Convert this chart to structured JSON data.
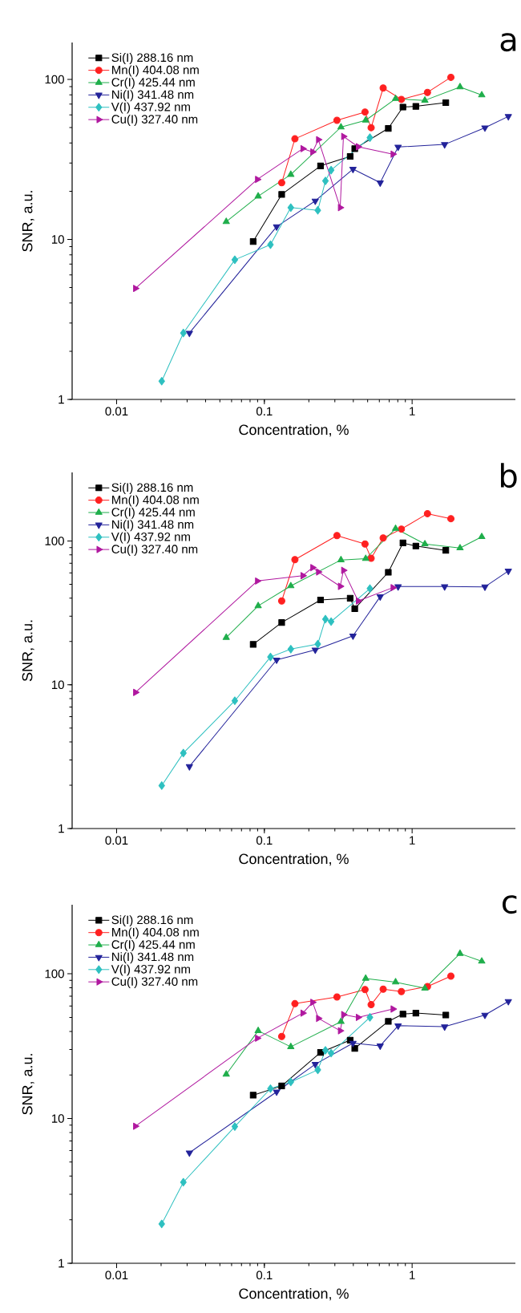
{
  "chart_data": [
    {
      "type": "line",
      "title": "a",
      "xlabel": "Concentration, %",
      "ylabel": "SNR, a.u.",
      "log": "xy",
      "legend": "top left",
      "xlim": [
        0.005,
        5
      ],
      "ylim": [
        1,
        170
      ],
      "xticks": [
        0.01,
        0.1,
        1
      ],
      "yticks": [
        1,
        10,
        100
      ],
      "series": [
        {
          "name": "Si(I) 288.16 nm",
          "color": "#000000",
          "marker": "square",
          "x": [
            0.084,
            0.131,
            0.24,
            0.381,
            0.409,
            0.69,
            0.867,
            1.06,
            1.69
          ],
          "values": [
            9.7,
            19.1,
            28.8,
            33,
            36.9,
            49.4,
            67.1,
            67.8,
            71.5
          ]
        },
        {
          "name": "Mn(I) 404.08 nm",
          "color": "#ff2020",
          "marker": "circle",
          "x": [
            0.131,
            0.161,
            0.31,
            0.48,
            0.528,
            0.637,
            0.846,
            1.27,
            1.83
          ],
          "values": [
            22.6,
            42.5,
            55.5,
            62.5,
            49.9,
            88.3,
            75,
            82.9,
            103
          ]
        },
        {
          "name": "Cr(I) 425.44 nm",
          "color": "#1fae4b",
          "marker": "triangle",
          "x": [
            0.0552,
            0.0908,
            0.151,
            0.33,
            0.485,
            0.773,
            1.22,
            2.11,
            2.96
          ],
          "values": [
            12.9,
            18.6,
            25.4,
            50.3,
            55.5,
            75.7,
            73.9,
            89.6,
            79.8
          ]
        },
        {
          "name": "Ni(I) 341.48 nm",
          "color": "#23239a",
          "marker": "triangle-down",
          "x": [
            0.0311,
            0.121,
            0.221,
            0.398,
            0.608,
            0.804,
            1.66,
            3.11,
            4.48
          ],
          "values": [
            2.6,
            12,
            17.4,
            27.5,
            22.6,
            37.8,
            39.2,
            49.9,
            58.7
          ]
        },
        {
          "name": "V(I) 437.92 nm",
          "color": "#2ec0c0",
          "marker": "diamond",
          "x": [
            0.0202,
            0.0283,
            0.0631,
            0.11,
            0.151,
            0.23,
            0.259,
            0.283,
            0.518
          ],
          "values": [
            1.3,
            2.6,
            7.46,
            9.27,
            15.8,
            15.2,
            23.2,
            27.1,
            43.2
          ]
        },
        {
          "name": "Cu(I) 327.40 nm",
          "color": "#b0189f",
          "marker": "triangle-right",
          "x": [
            0.0134,
            0.0896,
            0.182,
            0.212,
            0.232,
            0.326,
            0.343,
            0.431,
            0.741
          ],
          "values": [
            4.94,
            23.7,
            36.9,
            35.2,
            42,
            15.8,
            44,
            37.9,
            34.1
          ]
        }
      ]
    },
    {
      "type": "line",
      "title": "b",
      "xlabel": "Concentration, %",
      "ylabel": "SNR, a.u.",
      "log": "xy",
      "legend": "top left",
      "xlim": [
        0.005,
        5
      ],
      "ylim": [
        1,
        300
      ],
      "xticks": [
        0.01,
        0.1,
        1
      ],
      "yticks": [
        1,
        10,
        100
      ],
      "series": [
        {
          "name": "Si(I) 288.16 nm",
          "color": "#000000",
          "marker": "square",
          "x": [
            0.084,
            0.131,
            0.24,
            0.381,
            0.409,
            0.69,
            0.867,
            1.06,
            1.69
          ],
          "values": [
            19.1,
            27.1,
            38.9,
            40,
            33.8,
            60.6,
            96.9,
            92.3,
            86.1
          ]
        },
        {
          "name": "Mn(I) 404.08 nm",
          "color": "#ff2020",
          "marker": "circle",
          "x": [
            0.131,
            0.161,
            0.31,
            0.48,
            0.528,
            0.637,
            0.846,
            1.27,
            1.83
          ],
          "values": [
            38.3,
            74.2,
            109,
            95.3,
            75.8,
            105,
            121,
            155,
            143
          ]
        },
        {
          "name": "Cr(I) 425.44 nm",
          "color": "#1fae4b",
          "marker": "triangle",
          "x": [
            0.0552,
            0.0908,
            0.151,
            0.33,
            0.485,
            0.773,
            1.22,
            2.11,
            2.96
          ],
          "values": [
            21.3,
            35.4,
            48.7,
            73.8,
            75.4,
            122,
            95.3,
            89.3,
            107
          ]
        },
        {
          "name": "Ni(I) 341.48 nm",
          "color": "#23239a",
          "marker": "triangle-down",
          "x": [
            0.0311,
            0.121,
            0.221,
            0.398,
            0.608,
            0.804,
            1.66,
            3.11,
            4.48
          ],
          "values": [
            2.7,
            14.9,
            17.5,
            21.9,
            41,
            48.2,
            48.2,
            48,
            61.9
          ]
        },
        {
          "name": "V(I) 437.92 nm",
          "color": "#2ec0c0",
          "marker": "diamond",
          "x": [
            0.0202,
            0.0283,
            0.0631,
            0.11,
            0.151,
            0.23,
            0.259,
            0.283,
            0.518
          ],
          "values": [
            1.99,
            3.35,
            7.74,
            15.6,
            17.7,
            19.2,
            28.6,
            27.5,
            46.7
          ]
        },
        {
          "name": "Cu(I) 327.40 nm",
          "color": "#b0189f",
          "marker": "triangle-right",
          "x": [
            0.0134,
            0.0896,
            0.182,
            0.212,
            0.232,
            0.326,
            0.343,
            0.431,
            0.741
          ],
          "values": [
            8.85,
            52.7,
            57.4,
            65.3,
            60.9,
            48.4,
            62.5,
            38.3,
            47.4
          ]
        }
      ]
    },
    {
      "type": "line",
      "title": "c",
      "xlabel": "Concentration, %",
      "ylabel": "SNR, a.u.",
      "log": "xy",
      "legend": "top left",
      "xlim": [
        0.005,
        5
      ],
      "ylim": [
        1,
        300
      ],
      "xticks": [
        0.01,
        0.1,
        1
      ],
      "yticks": [
        1,
        10,
        100
      ],
      "series": [
        {
          "name": "Si(I) 288.16 nm",
          "color": "#000000",
          "marker": "square",
          "x": [
            0.084,
            0.131,
            0.24,
            0.381,
            0.409,
            0.69,
            0.867,
            1.06,
            1.69
          ],
          "values": [
            14.5,
            16.8,
            28.6,
            34.8,
            30.5,
            46.9,
            52.7,
            53.5,
            51.9
          ]
        },
        {
          "name": "Mn(I) 404.08 nm",
          "color": "#ff2020",
          "marker": "circle",
          "x": [
            0.131,
            0.161,
            0.31,
            0.48,
            0.528,
            0.637,
            0.846,
            1.27,
            1.83
          ],
          "values": [
            36.9,
            62.2,
            69.2,
            77.8,
            61.2,
            78.3,
            75.4,
            81.6,
            96.3
          ]
        },
        {
          "name": "Cr(I) 425.44 nm",
          "color": "#1fae4b",
          "marker": "triangle",
          "x": [
            0.0552,
            0.0908,
            0.151,
            0.33,
            0.485,
            0.773,
            1.22,
            2.11,
            2.96
          ],
          "values": [
            20.2,
            40.4,
            31.3,
            46.7,
            92.8,
            87.6,
            79.5,
            138,
            122
          ]
        },
        {
          "name": "Ni(I) 341.48 nm",
          "color": "#23239a",
          "marker": "triangle-down",
          "x": [
            0.0311,
            0.121,
            0.221,
            0.398,
            0.608,
            0.804,
            1.66,
            3.11,
            4.48
          ],
          "values": [
            5.8,
            15.3,
            23.7,
            33.2,
            31.8,
            43.8,
            43.1,
            51.9,
            64.5
          ]
        },
        {
          "name": "V(I) 437.92 nm",
          "color": "#2ec0c0",
          "marker": "diamond",
          "x": [
            0.0202,
            0.0283,
            0.0631,
            0.11,
            0.151,
            0.23,
            0.259,
            0.283,
            0.518
          ],
          "values": [
            1.87,
            3.63,
            8.8,
            16.1,
            17.9,
            21.7,
            29.6,
            28.3,
            50
          ]
        },
        {
          "name": "Cu(I) 327.40 nm",
          "color": "#b0189f",
          "marker": "triangle-right",
          "x": [
            0.0134,
            0.0896,
            0.182,
            0.212,
            0.232,
            0.326,
            0.343,
            0.431,
            0.741
          ],
          "values": [
            8.85,
            35.9,
            53.5,
            63.5,
            49.2,
            40.4,
            52.2,
            50,
            57.1
          ]
        }
      ]
    }
  ]
}
